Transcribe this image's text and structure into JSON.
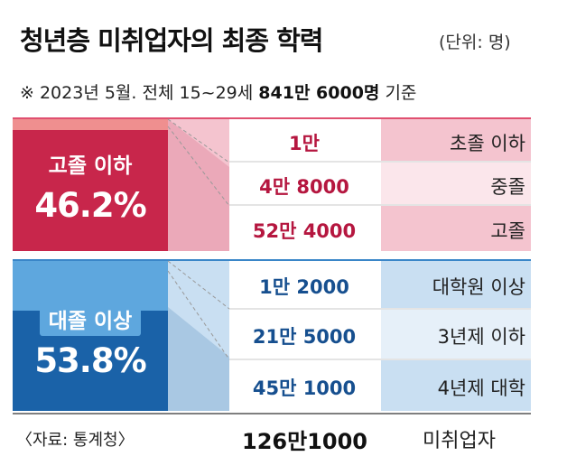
{
  "header": {
    "title": "청년층 미취업자의 최종 학력",
    "unit": "(단위: 명)",
    "subtitle_prefix": "※ 2023년 5월. 전체 15~29세 ",
    "subtitle_total": "841만 6000명",
    "subtitle_suffix": " 기준"
  },
  "colors": {
    "red_dark": "#c8264b",
    "red_light": "#f4c4cf",
    "red_pale": "#fbe6eb",
    "blue_dark": "#1a62a8",
    "blue_light": "#c9dff2",
    "blue_pale": "#e6f0f9",
    "red_text": "#b5163f",
    "blue_text": "#164f8f"
  },
  "chart_data": {
    "type": "table",
    "groups": [
      {
        "label": "고졸 이하",
        "share_text": "46.2%",
        "share": 46.2,
        "rows": [
          {
            "value_text": "1만",
            "value": 10000,
            "category": "초졸 이하"
          },
          {
            "value_text": "4만 8000",
            "value": 48000,
            "category": "중졸"
          },
          {
            "value_text": "52만 4000",
            "value": 524000,
            "category": "고졸"
          }
        ]
      },
      {
        "label": "대졸 이상",
        "share_text": "53.8%",
        "share": 53.8,
        "rows": [
          {
            "value_text": "1만 2000",
            "value": 12000,
            "category": "대학원 이상"
          },
          {
            "value_text": "21만 5000",
            "value": 215000,
            "category": "3년제 이하"
          },
          {
            "value_text": "45만 1000",
            "value": 451000,
            "category": "4년제 대학"
          }
        ]
      }
    ],
    "total_text": "126만1000",
    "total_value": 1261000,
    "total_label": "미취업자"
  },
  "footer": {
    "source": "〈자료: 통계청〉"
  }
}
